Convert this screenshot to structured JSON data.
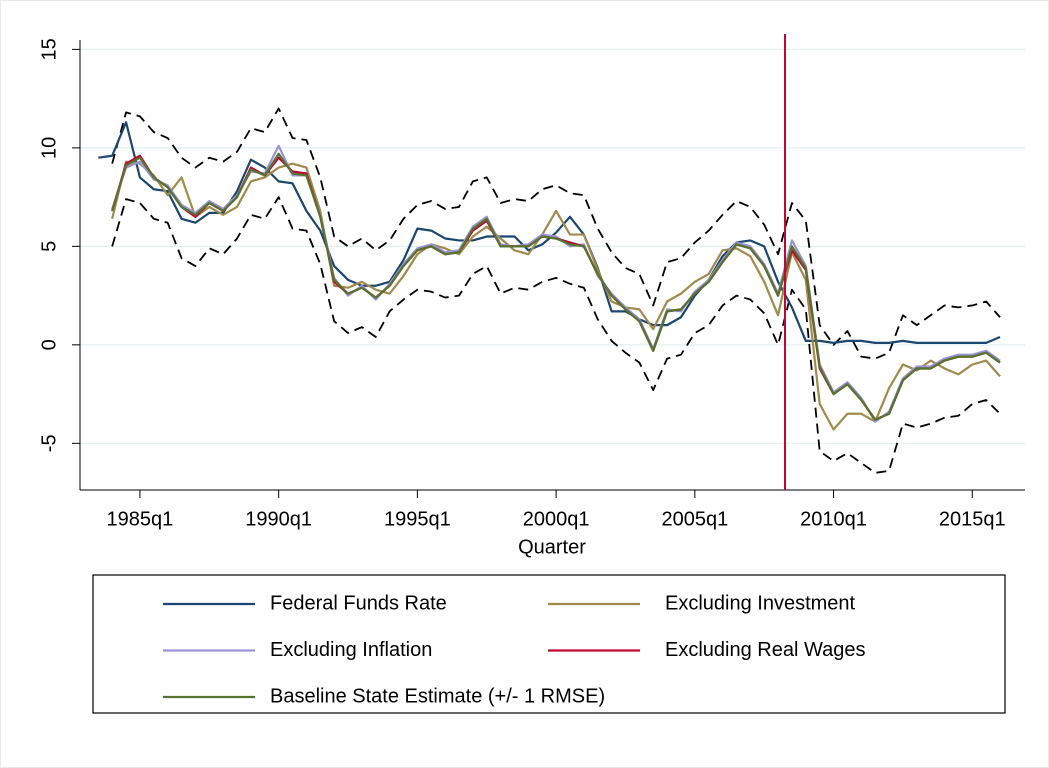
{
  "chart_data": {
    "type": "line",
    "x_label": "Quarter",
    "x": [
      1983.5,
      1984,
      1984.5,
      1985,
      1985.5,
      1986,
      1986.5,
      1987,
      1987.5,
      1988,
      1988.5,
      1989,
      1989.5,
      1990,
      1990.5,
      1991,
      1991.5,
      1992,
      1992.5,
      1993,
      1993.5,
      1994,
      1994.5,
      1995,
      1995.5,
      1996,
      1996.5,
      1997,
      1997.5,
      1998,
      1998.5,
      1999,
      1999.5,
      2000,
      2000.5,
      2001,
      2001.5,
      2002,
      2002.5,
      2003,
      2003.5,
      2004,
      2004.5,
      2005,
      2005.5,
      2006,
      2006.5,
      2007,
      2007.5,
      2008,
      2008.5,
      2009,
      2009.5,
      2010,
      2010.5,
      2011,
      2011.5,
      2012,
      2012.5,
      2013,
      2013.5,
      2014,
      2014.5,
      2015,
      2015.5,
      2016
    ],
    "xlim": [
      1982.84,
      2016.9
    ],
    "xticks": [
      {
        "value": 1985,
        "label": "1985q1"
      },
      {
        "value": 1990,
        "label": "1990q1"
      },
      {
        "value": 1995,
        "label": "1995q1"
      },
      {
        "value": 2000,
        "label": "2000q1"
      },
      {
        "value": 2005,
        "label": "2005q1"
      },
      {
        "value": 2010,
        "label": "2010q1"
      },
      {
        "value": 2015,
        "label": "2015q1"
      }
    ],
    "ylim": [
      -7.37,
      17.0
    ],
    "yticks": [
      -5,
      0,
      5,
      10,
      15
    ],
    "grid": true,
    "vline": {
      "x": 2008.25,
      "color": "#c10534"
    },
    "series": [
      {
        "name": "Federal Funds Rate",
        "color": "#1a476f",
        "values": [
          9.5,
          9.6,
          11.3,
          8.5,
          7.9,
          7.8,
          6.4,
          6.2,
          6.7,
          6.7,
          7.8,
          9.4,
          9.0,
          8.3,
          8.2,
          6.8,
          5.8,
          4.0,
          3.3,
          3.0,
          3.0,
          3.2,
          4.3,
          5.9,
          5.8,
          5.4,
          5.3,
          5.3,
          5.5,
          5.5,
          5.5,
          4.8,
          5.1,
          5.7,
          6.5,
          5.6,
          3.9,
          1.7,
          1.7,
          1.3,
          1.0,
          1.0,
          1.4,
          2.5,
          3.3,
          4.5,
          5.2,
          5.3,
          5.0,
          3.2,
          1.9,
          0.2,
          0.2,
          0.1,
          0.2,
          0.2,
          0.1,
          0.1,
          0.2,
          0.1,
          0.1,
          0.1,
          0.1,
          0.1,
          0.1,
          0.4
        ]
      },
      {
        "name": "Excluding Investment",
        "color": "#a08a4c",
        "values": [
          null,
          6.4,
          9.3,
          9.2,
          8.6,
          7.6,
          8.5,
          6.5,
          7.0,
          6.6,
          7.0,
          8.3,
          8.5,
          9.0,
          9.2,
          9.0,
          6.8,
          3.0,
          2.9,
          3.2,
          2.8,
          2.6,
          3.5,
          4.6,
          5.1,
          4.9,
          4.6,
          5.5,
          6.0,
          5.4,
          4.8,
          4.6,
          5.6,
          6.8,
          5.6,
          5.6,
          3.8,
          2.2,
          1.9,
          1.8,
          0.8,
          2.2,
          2.6,
          3.2,
          3.6,
          4.8,
          4.9,
          4.5,
          3.2,
          1.5,
          4.7,
          3.3,
          -3.0,
          -4.3,
          -3.5,
          -3.5,
          -3.9,
          -2.2,
          -1.0,
          -1.3,
          -0.8,
          -1.2,
          -1.5,
          -1.0,
          -0.8,
          -1.6
        ]
      },
      {
        "name": "Excluding Inflation",
        "color": "#9a94d6",
        "values": [
          null,
          6.9,
          9.0,
          9.3,
          8.4,
          8.1,
          7.1,
          6.7,
          7.3,
          6.9,
          7.6,
          8.8,
          8.7,
          10.1,
          8.6,
          8.6,
          6.6,
          3.4,
          2.5,
          3.0,
          2.3,
          3.1,
          4.1,
          4.9,
          5.1,
          4.7,
          4.8,
          6.0,
          6.5,
          5.1,
          5.0,
          5.1,
          5.6,
          5.5,
          5.0,
          5.1,
          3.5,
          2.6,
          1.9,
          1.3,
          -0.2,
          1.8,
          1.7,
          2.7,
          3.3,
          4.3,
          5.2,
          5.0,
          4.1,
          2.6,
          5.3,
          4.0,
          -1.0,
          -2.4,
          -1.9,
          -2.7,
          -3.9,
          -3.4,
          -1.7,
          -1.1,
          -1.1,
          -0.7,
          -0.5,
          -0.5,
          -0.3,
          -0.8
        ]
      },
      {
        "name": "Excluding Real Wages",
        "color": "#c10534",
        "values": [
          null,
          6.8,
          9.2,
          9.6,
          8.5,
          8.0,
          7.0,
          6.5,
          7.2,
          6.8,
          7.5,
          9.0,
          8.6,
          9.5,
          8.8,
          8.7,
          6.5,
          3.2,
          2.6,
          2.9,
          2.4,
          3.0,
          4.0,
          4.8,
          5.0,
          4.6,
          4.7,
          5.8,
          6.3,
          5.0,
          5.0,
          5.0,
          5.5,
          5.4,
          5.2,
          5.0,
          3.6,
          2.5,
          1.8,
          1.2,
          -0.3,
          1.7,
          1.8,
          2.6,
          3.2,
          4.2,
          5.1,
          4.9,
          4.0,
          2.5,
          4.8,
          3.8,
          -1.2,
          -2.5,
          -2.0,
          -2.8,
          -3.8,
          -3.5,
          -1.8,
          -1.2,
          -1.2,
          -0.8,
          -0.6,
          -0.6,
          -0.4,
          -0.9
        ]
      },
      {
        "name": "Baseline State Estimate (+/- 1 RMSE)",
        "color": "#55752f",
        "values": [
          null,
          6.8,
          9.1,
          9.5,
          8.5,
          8.0,
          7.0,
          6.6,
          7.2,
          6.8,
          7.5,
          8.9,
          8.6,
          9.7,
          8.7,
          8.6,
          6.5,
          3.3,
          2.6,
          2.9,
          2.4,
          3.0,
          4.0,
          4.8,
          5.0,
          4.6,
          4.7,
          5.9,
          6.4,
          5.0,
          5.0,
          5.0,
          5.5,
          5.4,
          5.1,
          5.0,
          3.6,
          2.5,
          1.8,
          1.2,
          -0.3,
          1.7,
          1.8,
          2.6,
          3.2,
          4.2,
          5.1,
          4.9,
          4.0,
          2.5,
          5.0,
          3.9,
          -1.1,
          -2.5,
          -2.0,
          -2.8,
          -3.8,
          -3.5,
          -1.8,
          -1.2,
          -1.2,
          -0.8,
          -0.6,
          -0.6,
          -0.4,
          -0.9
        ]
      },
      {
        "color": "#000000",
        "dash": true,
        "values": [
          null,
          9.2,
          11.8,
          11.6,
          10.8,
          10.5,
          9.5,
          9.0,
          9.5,
          9.3,
          9.8,
          11.0,
          10.8,
          12.0,
          10.5,
          10.4,
          8.5,
          5.5,
          5.0,
          5.4,
          4.8,
          5.3,
          6.4,
          7.1,
          7.3,
          6.9,
          7.0,
          8.3,
          8.5,
          7.2,
          7.4,
          7.3,
          7.9,
          8.1,
          7.7,
          7.6,
          5.9,
          4.7,
          3.9,
          3.6,
          2.0,
          4.2,
          4.4,
          5.2,
          5.8,
          6.6,
          7.3,
          7.0,
          6.1,
          4.6,
          7.2,
          6.3,
          1.0,
          0.0,
          0.7,
          -0.6,
          -0.7,
          -0.4,
          1.5,
          1.0,
          1.5,
          2.0,
          1.9,
          2.0,
          2.2,
          1.4
        ]
      },
      {
        "color": "#000000",
        "dash": true,
        "values": [
          null,
          5.0,
          7.4,
          7.2,
          6.4,
          6.2,
          4.4,
          4.0,
          4.9,
          4.6,
          5.4,
          6.6,
          6.4,
          7.5,
          5.9,
          5.8,
          4.1,
          1.2,
          0.6,
          0.9,
          0.4,
          1.7,
          2.3,
          2.8,
          2.7,
          2.4,
          2.5,
          3.6,
          4.0,
          2.6,
          2.9,
          2.8,
          3.2,
          3.4,
          3.1,
          2.9,
          1.3,
          0.2,
          -0.4,
          -0.9,
          -2.3,
          -0.7,
          -0.5,
          0.6,
          1.0,
          2.0,
          2.5,
          2.3,
          1.6,
          0.0,
          2.8,
          1.8,
          -5.4,
          -5.9,
          -5.5,
          -6.0,
          -6.5,
          -6.4,
          -4.0,
          -4.2,
          -4.0,
          -3.7,
          -3.6,
          -3.0,
          -2.8,
          -3.5
        ]
      }
    ]
  }
}
